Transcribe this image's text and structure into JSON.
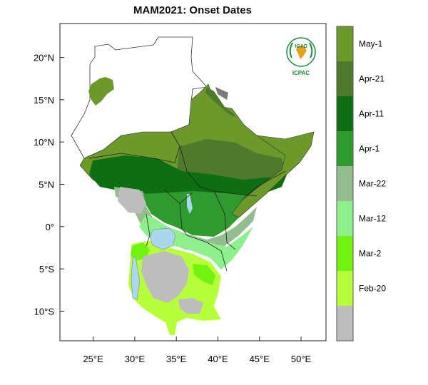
{
  "title": "MAM2021: Onset Dates",
  "logo": {
    "top_text": "IGAD",
    "bottom_text": "ICPAC",
    "brand_color": "#1a8a3a"
  },
  "axes": {
    "latitude_ticks": [
      "20°N",
      "15°N",
      "10°N",
      "5°N",
      "0°",
      "5°S",
      "10°S"
    ],
    "longitude_ticks": [
      "25°E",
      "30°E",
      "35°E",
      "40°E",
      "45°E",
      "50°E"
    ],
    "lat_values": [
      20,
      15,
      10,
      5,
      0,
      -5,
      -10
    ],
    "lon_values": [
      25,
      30,
      35,
      40,
      45,
      50
    ],
    "lat_range": [
      -13.5,
      24
    ],
    "lon_range": [
      21,
      53
    ]
  },
  "legend": {
    "bins": [
      {
        "label": "May-1",
        "color": "#6b9a2a"
      },
      {
        "label": "Apr-21",
        "color": "#4f7a2c"
      },
      {
        "label": "Apr-11",
        "color": "#0e6f12"
      },
      {
        "label": "Apr-1",
        "color": "#2f9a2e"
      },
      {
        "label": "Mar-22",
        "color": "#93bd8f"
      },
      {
        "label": "Mar-12",
        "color": "#8ef08c"
      },
      {
        "label": "Mar-2",
        "color": "#72f20f"
      },
      {
        "label": "Feb-20",
        "color": "#b7ff3a"
      },
      {
        "label": "",
        "color": "#bdbdbd"
      }
    ]
  },
  "colors": {
    "water": "#a9d8ee",
    "no_onset": "#bdbdbd",
    "background": "#ffffff"
  }
}
